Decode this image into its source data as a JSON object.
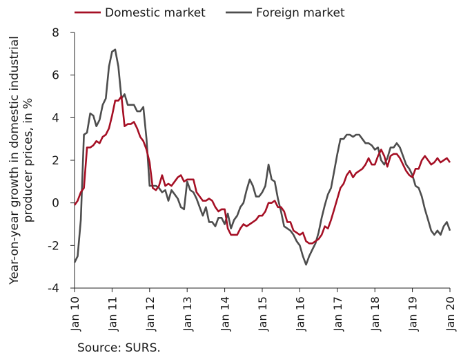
{
  "chart_data": {
    "type": "line",
    "ylabel": "Year-on-year growth in domestic industrial producer prices, in %",
    "xlabel": "",
    "ylim": [
      -4,
      8
    ],
    "yticks": [
      -4,
      -2,
      0,
      2,
      4,
      6,
      8
    ],
    "xlim": [
      2010,
      2020
    ],
    "xticks": [
      {
        "value": 2010,
        "label": "Jan 10"
      },
      {
        "value": 2011,
        "label": "Jan 11"
      },
      {
        "value": 2012,
        "label": "Jan 12"
      },
      {
        "value": 2013,
        "label": "Jan 13"
      },
      {
        "value": 2014,
        "label": "Jan 14"
      },
      {
        "value": 2015,
        "label": "Jan 15"
      },
      {
        "value": 2016,
        "label": "Jan 16"
      },
      {
        "value": 2017,
        "label": "Jan 17"
      },
      {
        "value": 2018,
        "label": "Jan 18"
      },
      {
        "value": 2019,
        "label": "Jan 19"
      },
      {
        "value": 2020,
        "label": "Jan 20"
      }
    ],
    "legend_position": "top",
    "grid": false,
    "source": "Source: SURS.",
    "series": [
      {
        "name": "Domestic market",
        "color": "#a50f24",
        "points": [
          [
            2010.0,
            -0.1
          ],
          [
            2010.083,
            0.1
          ],
          [
            2010.167,
            0.5
          ],
          [
            2010.25,
            0.7
          ],
          [
            2010.333,
            2.6
          ],
          [
            2010.417,
            2.6
          ],
          [
            2010.5,
            2.7
          ],
          [
            2010.583,
            2.9
          ],
          [
            2010.667,
            2.8
          ],
          [
            2010.75,
            3.1
          ],
          [
            2010.833,
            3.2
          ],
          [
            2010.917,
            3.5
          ],
          [
            2011.0,
            4.1
          ],
          [
            2011.083,
            4.8
          ],
          [
            2011.167,
            4.8
          ],
          [
            2011.25,
            5.0
          ],
          [
            2011.333,
            3.6
          ],
          [
            2011.417,
            3.7
          ],
          [
            2011.5,
            3.7
          ],
          [
            2011.583,
            3.8
          ],
          [
            2011.667,
            3.5
          ],
          [
            2011.75,
            3.1
          ],
          [
            2011.833,
            2.9
          ],
          [
            2011.917,
            2.5
          ],
          [
            2012.0,
            1.9
          ],
          [
            2012.083,
            0.7
          ],
          [
            2012.167,
            0.6
          ],
          [
            2012.25,
            0.8
          ],
          [
            2012.333,
            1.3
          ],
          [
            2012.417,
            0.8
          ],
          [
            2012.5,
            0.9
          ],
          [
            2012.583,
            0.8
          ],
          [
            2012.667,
            1.0
          ],
          [
            2012.75,
            1.2
          ],
          [
            2012.833,
            1.3
          ],
          [
            2012.917,
            1.0
          ],
          [
            2013.0,
            1.1
          ],
          [
            2013.083,
            1.1
          ],
          [
            2013.167,
            1.1
          ],
          [
            2013.25,
            0.5
          ],
          [
            2013.333,
            0.3
          ],
          [
            2013.417,
            0.1
          ],
          [
            2013.5,
            0.1
          ],
          [
            2013.583,
            0.2
          ],
          [
            2013.667,
            0.1
          ],
          [
            2013.75,
            -0.2
          ],
          [
            2013.833,
            -0.4
          ],
          [
            2013.917,
            -0.3
          ],
          [
            2014.0,
            -0.3
          ],
          [
            2014.083,
            -1.2
          ],
          [
            2014.167,
            -1.5
          ],
          [
            2014.25,
            -1.5
          ],
          [
            2014.333,
            -1.5
          ],
          [
            2014.417,
            -1.2
          ],
          [
            2014.5,
            -1.0
          ],
          [
            2014.583,
            -1.1
          ],
          [
            2014.667,
            -1.0
          ],
          [
            2014.75,
            -0.9
          ],
          [
            2014.833,
            -0.8
          ],
          [
            2014.917,
            -0.6
          ],
          [
            2015.0,
            -0.6
          ],
          [
            2015.083,
            -0.4
          ],
          [
            2015.167,
            0.0
          ],
          [
            2015.25,
            0.0
          ],
          [
            2015.333,
            0.1
          ],
          [
            2015.417,
            -0.2
          ],
          [
            2015.5,
            -0.2
          ],
          [
            2015.583,
            -0.4
          ],
          [
            2015.667,
            -0.9
          ],
          [
            2015.75,
            -0.9
          ],
          [
            2015.833,
            -1.3
          ],
          [
            2015.917,
            -1.4
          ],
          [
            2016.0,
            -1.5
          ],
          [
            2016.083,
            -1.4
          ],
          [
            2016.167,
            -1.8
          ],
          [
            2016.25,
            -1.9
          ],
          [
            2016.333,
            -1.9
          ],
          [
            2016.417,
            -1.8
          ],
          [
            2016.5,
            -1.7
          ],
          [
            2016.583,
            -1.5
          ],
          [
            2016.667,
            -1.1
          ],
          [
            2016.75,
            -1.2
          ],
          [
            2016.833,
            -0.8
          ],
          [
            2016.917,
            -0.3
          ],
          [
            2017.0,
            0.2
          ],
          [
            2017.083,
            0.7
          ],
          [
            2017.167,
            0.9
          ],
          [
            2017.25,
            1.3
          ],
          [
            2017.333,
            1.5
          ],
          [
            2017.417,
            1.2
          ],
          [
            2017.5,
            1.4
          ],
          [
            2017.583,
            1.5
          ],
          [
            2017.667,
            1.6
          ],
          [
            2017.75,
            1.8
          ],
          [
            2017.833,
            2.1
          ],
          [
            2017.917,
            1.8
          ],
          [
            2018.0,
            1.8
          ],
          [
            2018.083,
            2.2
          ],
          [
            2018.167,
            2.5
          ],
          [
            2018.25,
            2.2
          ],
          [
            2018.333,
            1.7
          ],
          [
            2018.417,
            2.2
          ],
          [
            2018.5,
            2.3
          ],
          [
            2018.583,
            2.3
          ],
          [
            2018.667,
            2.1
          ],
          [
            2018.75,
            1.8
          ],
          [
            2018.833,
            1.5
          ],
          [
            2018.917,
            1.3
          ],
          [
            2019.0,
            1.2
          ],
          [
            2019.083,
            1.6
          ],
          [
            2019.167,
            1.6
          ],
          [
            2019.25,
            2.0
          ],
          [
            2019.333,
            2.2
          ],
          [
            2019.417,
            2.0
          ],
          [
            2019.5,
            1.8
          ],
          [
            2019.583,
            1.9
          ],
          [
            2019.667,
            2.1
          ],
          [
            2019.75,
            1.9
          ],
          [
            2019.833,
            2.0
          ],
          [
            2019.917,
            2.1
          ],
          [
            2020.0,
            1.9
          ]
        ]
      },
      {
        "name": "Foreign market",
        "color": "#4d4d4d",
        "points": [
          [
            2010.0,
            -2.8
          ],
          [
            2010.083,
            -2.5
          ],
          [
            2010.167,
            -0.8
          ],
          [
            2010.25,
            3.2
          ],
          [
            2010.333,
            3.3
          ],
          [
            2010.417,
            4.2
          ],
          [
            2010.5,
            4.1
          ],
          [
            2010.583,
            3.6
          ],
          [
            2010.667,
            3.9
          ],
          [
            2010.75,
            4.6
          ],
          [
            2010.833,
            4.9
          ],
          [
            2010.917,
            6.4
          ],
          [
            2011.0,
            7.1
          ],
          [
            2011.083,
            7.2
          ],
          [
            2011.167,
            6.4
          ],
          [
            2011.25,
            4.9
          ],
          [
            2011.333,
            5.1
          ],
          [
            2011.417,
            4.6
          ],
          [
            2011.5,
            4.6
          ],
          [
            2011.583,
            4.6
          ],
          [
            2011.667,
            4.3
          ],
          [
            2011.75,
            4.3
          ],
          [
            2011.833,
            4.5
          ],
          [
            2011.917,
            3.0
          ],
          [
            2012.0,
            0.8
          ],
          [
            2012.083,
            0.8
          ],
          [
            2012.167,
            0.8
          ],
          [
            2012.25,
            0.7
          ],
          [
            2012.333,
            0.5
          ],
          [
            2012.417,
            0.6
          ],
          [
            2012.5,
            0.1
          ],
          [
            2012.583,
            0.6
          ],
          [
            2012.667,
            0.4
          ],
          [
            2012.75,
            0.2
          ],
          [
            2012.833,
            -0.2
          ],
          [
            2012.917,
            -0.3
          ],
          [
            2013.0,
            1.0
          ],
          [
            2013.083,
            0.6
          ],
          [
            2013.167,
            0.5
          ],
          [
            2013.25,
            0.2
          ],
          [
            2013.333,
            -0.2
          ],
          [
            2013.417,
            -0.6
          ],
          [
            2013.5,
            -0.2
          ],
          [
            2013.583,
            -0.9
          ],
          [
            2013.667,
            -0.9
          ],
          [
            2013.75,
            -1.1
          ],
          [
            2013.833,
            -0.7
          ],
          [
            2013.917,
            -0.7
          ],
          [
            2014.0,
            -1.0
          ],
          [
            2014.083,
            -0.5
          ],
          [
            2014.167,
            -1.2
          ],
          [
            2014.25,
            -0.8
          ],
          [
            2014.333,
            -0.6
          ],
          [
            2014.417,
            -0.2
          ],
          [
            2014.5,
            0.0
          ],
          [
            2014.583,
            0.6
          ],
          [
            2014.667,
            1.1
          ],
          [
            2014.75,
            0.8
          ],
          [
            2014.833,
            0.3
          ],
          [
            2014.917,
            0.3
          ],
          [
            2015.0,
            0.5
          ],
          [
            2015.083,
            0.8
          ],
          [
            2015.167,
            1.8
          ],
          [
            2015.25,
            1.1
          ],
          [
            2015.333,
            1.0
          ],
          [
            2015.417,
            0.2
          ],
          [
            2015.5,
            -0.4
          ],
          [
            2015.583,
            -1.1
          ],
          [
            2015.667,
            -1.2
          ],
          [
            2015.75,
            -1.3
          ],
          [
            2015.833,
            -1.5
          ],
          [
            2015.917,
            -1.8
          ],
          [
            2016.0,
            -2.0
          ],
          [
            2016.083,
            -2.5
          ],
          [
            2016.167,
            -2.9
          ],
          [
            2016.25,
            -2.5
          ],
          [
            2016.333,
            -2.2
          ],
          [
            2016.417,
            -1.9
          ],
          [
            2016.5,
            -1.4
          ],
          [
            2016.583,
            -0.7
          ],
          [
            2016.667,
            -0.1
          ],
          [
            2016.75,
            0.4
          ],
          [
            2016.833,
            0.7
          ],
          [
            2016.917,
            1.5
          ],
          [
            2017.0,
            2.3
          ],
          [
            2017.083,
            3.0
          ],
          [
            2017.167,
            3.0
          ],
          [
            2017.25,
            3.2
          ],
          [
            2017.333,
            3.2
          ],
          [
            2017.417,
            3.1
          ],
          [
            2017.5,
            3.2
          ],
          [
            2017.583,
            3.2
          ],
          [
            2017.667,
            3.0
          ],
          [
            2017.75,
            2.8
          ],
          [
            2017.833,
            2.8
          ],
          [
            2017.917,
            2.7
          ],
          [
            2018.0,
            2.5
          ],
          [
            2018.083,
            2.6
          ],
          [
            2018.167,
            2.0
          ],
          [
            2018.25,
            1.8
          ],
          [
            2018.333,
            2.1
          ],
          [
            2018.417,
            2.6
          ],
          [
            2018.5,
            2.6
          ],
          [
            2018.583,
            2.8
          ],
          [
            2018.667,
            2.6
          ],
          [
            2018.75,
            2.2
          ],
          [
            2018.833,
            1.8
          ],
          [
            2018.917,
            1.6
          ],
          [
            2019.0,
            1.3
          ],
          [
            2019.083,
            0.8
          ],
          [
            2019.167,
            0.7
          ],
          [
            2019.25,
            0.3
          ],
          [
            2019.333,
            -0.3
          ],
          [
            2019.417,
            -0.8
          ],
          [
            2019.5,
            -1.3
          ],
          [
            2019.583,
            -1.5
          ],
          [
            2019.667,
            -1.3
          ],
          [
            2019.75,
            -1.5
          ],
          [
            2019.833,
            -1.1
          ],
          [
            2019.917,
            -0.9
          ],
          [
            2020.0,
            -1.3
          ]
        ]
      }
    ]
  }
}
